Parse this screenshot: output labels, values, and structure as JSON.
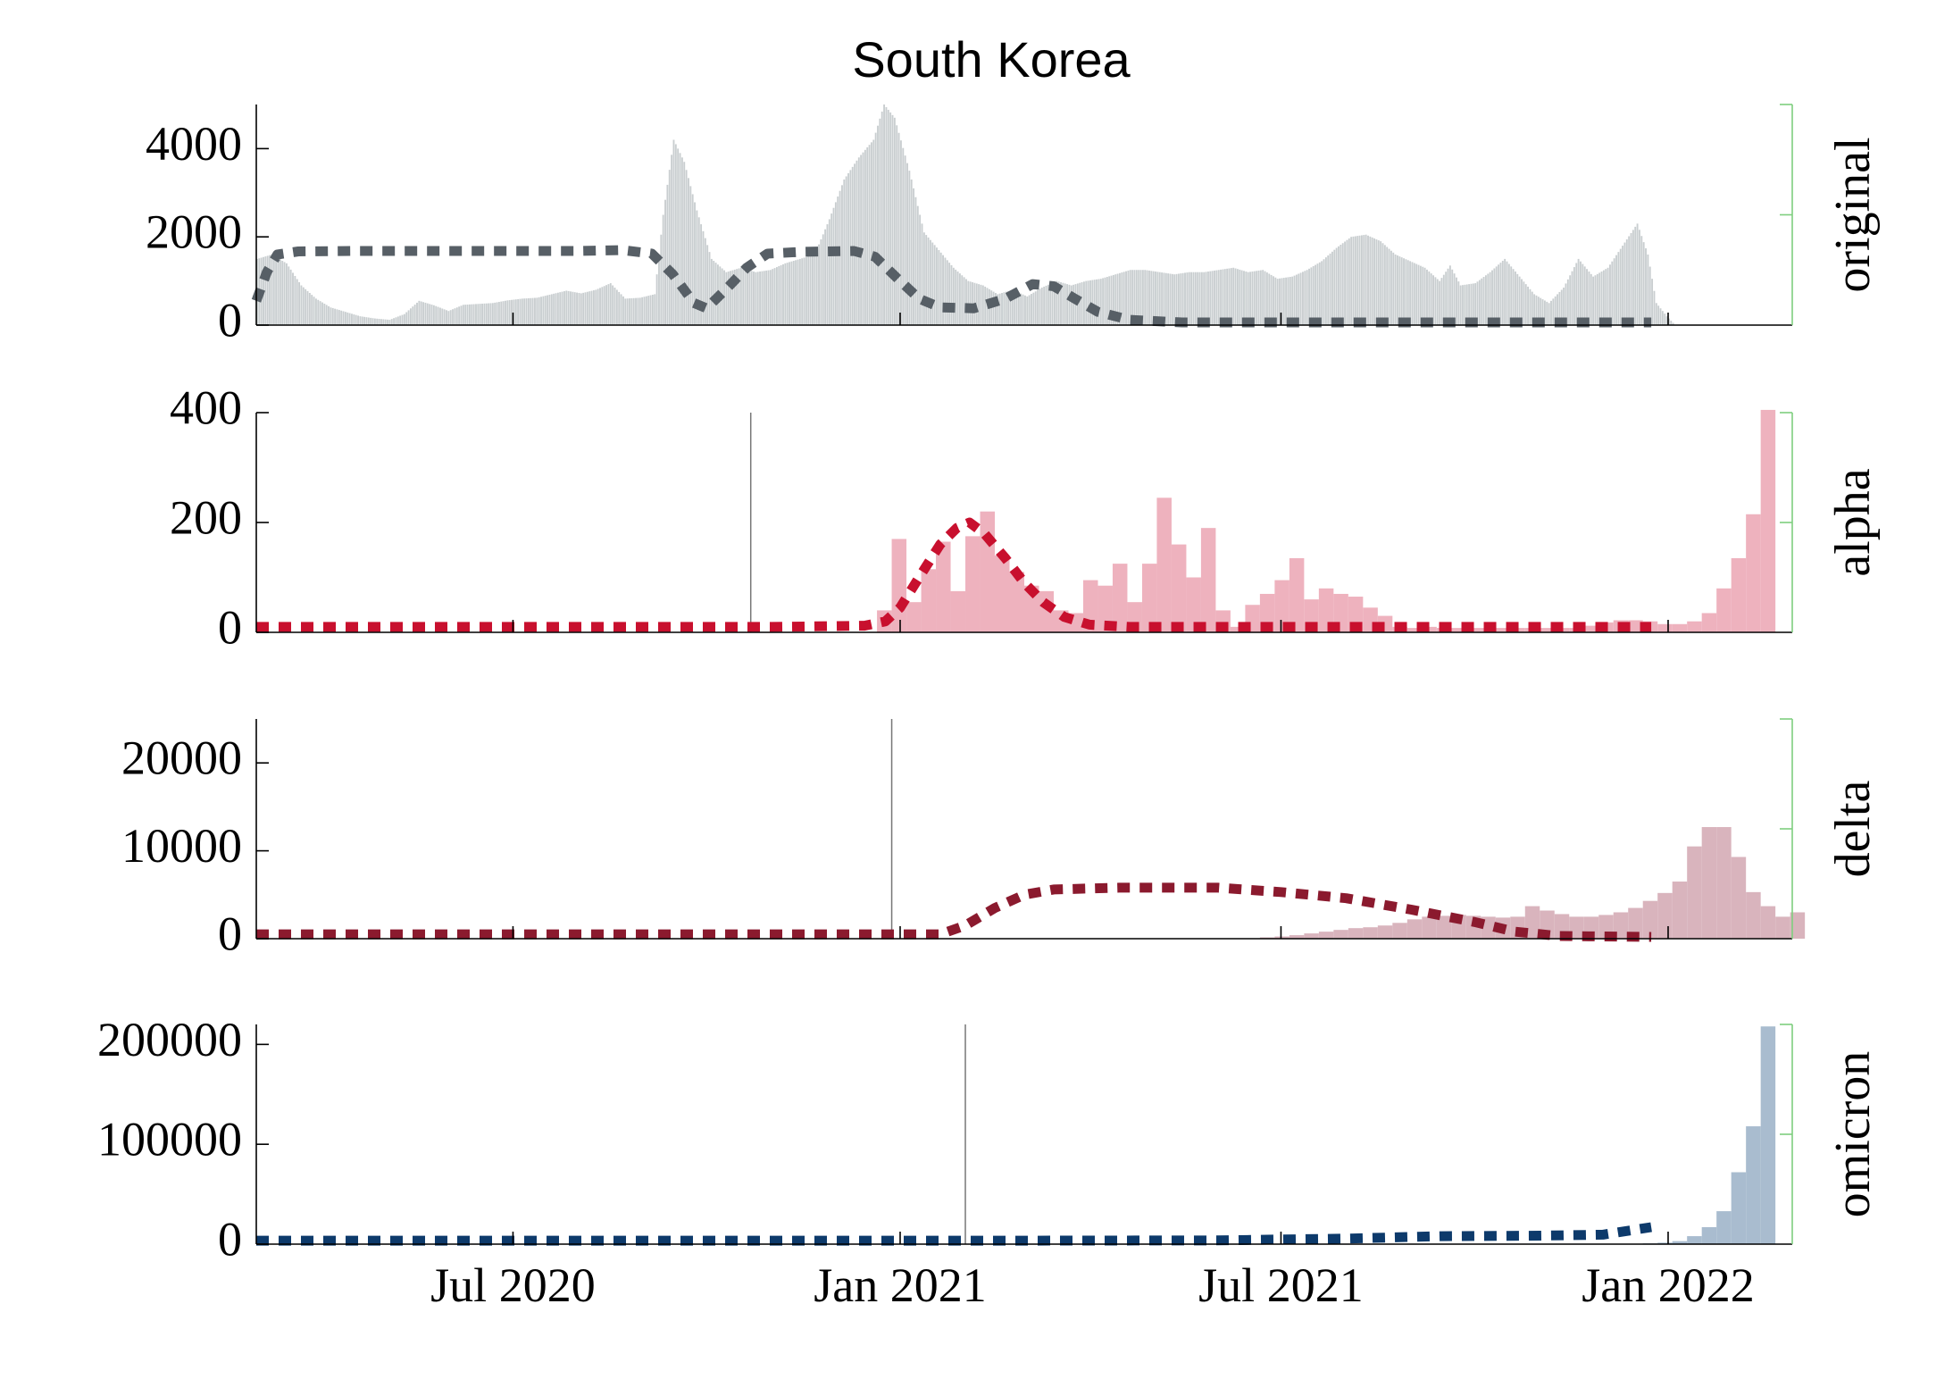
{
  "title": "South Korea",
  "x_ticks": [
    {
      "date": "2020-07-01",
      "label": "Jul 2020"
    },
    {
      "date": "2021-01-01",
      "label": "Jan 2021"
    },
    {
      "date": "2021-07-01",
      "label": "Jul 2021"
    },
    {
      "date": "2022-01-01",
      "label": "Jan 2022"
    }
  ],
  "xlim": [
    "2020-03-01",
    "2022-03-01"
  ],
  "colors": {
    "original_bar": "#c9ced0",
    "original_line": "#575f66",
    "alpha_bar": "#eeb2be",
    "alpha_line": "#c8102e",
    "delta_bar": "#d9b4bd",
    "delta_line": "#8b1a2e",
    "omicron_bar": "#a9bccf",
    "omicron_line": "#0d3a6b",
    "right_axis": "#7fcf7f"
  },
  "chart_data": [
    {
      "type": "bar",
      "label": "original",
      "ylim": [
        0,
        5000
      ],
      "yticks": [
        "0",
        "2000",
        "4000"
      ],
      "grid": false,
      "vline_date": null,
      "bar_days": 1,
      "bar_points": [
        [
          "2020-03-01",
          1500
        ],
        [
          "2020-03-08",
          1600
        ],
        [
          "2020-03-15",
          1400
        ],
        [
          "2020-03-22",
          900
        ],
        [
          "2020-03-29",
          600
        ],
        [
          "2020-04-05",
          400
        ],
        [
          "2020-04-12",
          300
        ],
        [
          "2020-04-19",
          200
        ],
        [
          "2020-04-26",
          150
        ],
        [
          "2020-05-03",
          120
        ],
        [
          "2020-05-10",
          250
        ],
        [
          "2020-05-17",
          550
        ],
        [
          "2020-05-24",
          450
        ],
        [
          "2020-05-31",
          320
        ],
        [
          "2020-06-07",
          460
        ],
        [
          "2020-06-14",
          480
        ],
        [
          "2020-06-21",
          500
        ],
        [
          "2020-06-28",
          560
        ],
        [
          "2020-07-05",
          600
        ],
        [
          "2020-07-12",
          620
        ],
        [
          "2020-07-19",
          700
        ],
        [
          "2020-07-26",
          780
        ],
        [
          "2020-08-02",
          720
        ],
        [
          "2020-08-09",
          800
        ],
        [
          "2020-08-16",
          950
        ],
        [
          "2020-08-23",
          600
        ],
        [
          "2020-08-30",
          620
        ],
        [
          "2020-09-06",
          700
        ],
        [
          "2020-09-10",
          2500
        ],
        [
          "2020-09-15",
          4200
        ],
        [
          "2020-09-20",
          3700
        ],
        [
          "2020-09-26",
          2600
        ],
        [
          "2020-10-03",
          1500
        ],
        [
          "2020-10-10",
          1200
        ],
        [
          "2020-10-17",
          1300
        ],
        [
          "2020-10-24",
          1200
        ],
        [
          "2020-10-31",
          1250
        ],
        [
          "2020-11-07",
          1400
        ],
        [
          "2020-11-14",
          1500
        ],
        [
          "2020-11-21",
          1600
        ],
        [
          "2020-11-28",
          2400
        ],
        [
          "2020-12-05",
          3300
        ],
        [
          "2020-12-12",
          3800
        ],
        [
          "2020-12-19",
          4200
        ],
        [
          "2020-12-24",
          5000
        ],
        [
          "2020-12-29",
          4700
        ],
        [
          "2021-01-05",
          3500
        ],
        [
          "2021-01-12",
          2100
        ],
        [
          "2021-01-19",
          1700
        ],
        [
          "2021-01-26",
          1300
        ],
        [
          "2021-02-02",
          1000
        ],
        [
          "2021-02-09",
          900
        ],
        [
          "2021-02-16",
          700
        ],
        [
          "2021-02-23",
          800
        ],
        [
          "2021-03-02",
          650
        ],
        [
          "2021-03-09",
          850
        ],
        [
          "2021-03-16",
          1000
        ],
        [
          "2021-03-23",
          900
        ],
        [
          "2021-03-30",
          1000
        ],
        [
          "2021-04-06",
          1050
        ],
        [
          "2021-04-13",
          1150
        ],
        [
          "2021-04-20",
          1250
        ],
        [
          "2021-04-27",
          1250
        ],
        [
          "2021-05-04",
          1200
        ],
        [
          "2021-05-11",
          1150
        ],
        [
          "2021-05-18",
          1200
        ],
        [
          "2021-05-25",
          1200
        ],
        [
          "2021-06-01",
          1250
        ],
        [
          "2021-06-08",
          1300
        ],
        [
          "2021-06-15",
          1200
        ],
        [
          "2021-06-22",
          1250
        ],
        [
          "2021-06-29",
          1050
        ],
        [
          "2021-07-06",
          1100
        ],
        [
          "2021-07-13",
          1250
        ],
        [
          "2021-07-20",
          1450
        ],
        [
          "2021-07-27",
          1750
        ],
        [
          "2021-08-03",
          2000
        ],
        [
          "2021-08-10",
          2050
        ],
        [
          "2021-08-17",
          1900
        ],
        [
          "2021-08-24",
          1600
        ],
        [
          "2021-08-31",
          1450
        ],
        [
          "2021-09-07",
          1300
        ],
        [
          "2021-09-14",
          1000
        ],
        [
          "2021-09-19",
          1350
        ],
        [
          "2021-09-24",
          900
        ],
        [
          "2021-10-01",
          950
        ],
        [
          "2021-10-08",
          1200
        ],
        [
          "2021-10-15",
          1500
        ],
        [
          "2021-10-22",
          1100
        ],
        [
          "2021-10-29",
          700
        ],
        [
          "2021-11-05",
          500
        ],
        [
          "2021-11-12",
          850
        ],
        [
          "2021-11-19",
          1500
        ],
        [
          "2021-11-26",
          1100
        ],
        [
          "2021-12-03",
          1300
        ],
        [
          "2021-12-10",
          1800
        ],
        [
          "2021-12-17",
          2300
        ],
        [
          "2021-12-22",
          1600
        ],
        [
          "2021-12-26",
          500
        ],
        [
          "2021-12-31",
          200
        ],
        [
          "2022-01-04",
          0
        ],
        [
          "2022-03-01",
          0
        ]
      ],
      "line_points": [
        [
          "2020-03-01",
          550
        ],
        [
          "2020-03-06",
          1200
        ],
        [
          "2020-03-11",
          1600
        ],
        [
          "2020-03-21",
          1670
        ],
        [
          "2020-04-15",
          1680
        ],
        [
          "2020-06-01",
          1680
        ],
        [
          "2020-07-01",
          1680
        ],
        [
          "2020-08-01",
          1680
        ],
        [
          "2020-08-22",
          1700
        ],
        [
          "2020-09-05",
          1620
        ],
        [
          "2020-09-15",
          1150
        ],
        [
          "2020-09-25",
          500
        ],
        [
          "2020-10-01",
          380
        ],
        [
          "2020-10-10",
          800
        ],
        [
          "2020-10-20",
          1300
        ],
        [
          "2020-10-30",
          1620
        ],
        [
          "2020-11-15",
          1660
        ],
        [
          "2020-12-10",
          1680
        ],
        [
          "2020-12-20",
          1550
        ],
        [
          "2021-01-01",
          1000
        ],
        [
          "2021-01-10",
          600
        ],
        [
          "2021-01-20",
          400
        ],
        [
          "2021-02-05",
          380
        ],
        [
          "2021-02-20",
          600
        ],
        [
          "2021-03-05",
          930
        ],
        [
          "2021-03-15",
          880
        ],
        [
          "2021-03-25",
          600
        ],
        [
          "2021-04-05",
          300
        ],
        [
          "2021-04-20",
          120
        ],
        [
          "2021-05-15",
          60
        ],
        [
          "2021-07-01",
          60
        ],
        [
          "2021-09-01",
          60
        ],
        [
          "2021-11-01",
          60
        ],
        [
          "2021-12-24",
          60
        ]
      ]
    },
    {
      "type": "bar",
      "label": "alpha",
      "ylim": [
        0,
        400
      ],
      "yticks": [
        "0",
        "200",
        "400"
      ],
      "grid": false,
      "vline_date": "2020-10-22",
      "bar_days": 7,
      "bar_points": [
        [
          "2020-12-21",
          40
        ],
        [
          "2020-12-28",
          170
        ],
        [
          "2021-01-04",
          55
        ],
        [
          "2021-01-11",
          115
        ],
        [
          "2021-01-18",
          165
        ],
        [
          "2021-01-25",
          75
        ],
        [
          "2021-02-01",
          175
        ],
        [
          "2021-02-08",
          220
        ],
        [
          "2021-02-15",
          140
        ],
        [
          "2021-02-22",
          110
        ],
        [
          "2021-03-01",
          85
        ],
        [
          "2021-03-08",
          75
        ],
        [
          "2021-03-15",
          40
        ],
        [
          "2021-03-22",
          35
        ],
        [
          "2021-03-29",
          95
        ],
        [
          "2021-04-05",
          85
        ],
        [
          "2021-04-12",
          125
        ],
        [
          "2021-04-19",
          55
        ],
        [
          "2021-04-26",
          125
        ],
        [
          "2021-05-03",
          245
        ],
        [
          "2021-05-10",
          160
        ],
        [
          "2021-05-17",
          100
        ],
        [
          "2021-05-24",
          190
        ],
        [
          "2021-05-31",
          40
        ],
        [
          "2021-06-07",
          10
        ],
        [
          "2021-06-14",
          50
        ],
        [
          "2021-06-21",
          70
        ],
        [
          "2021-06-28",
          95
        ],
        [
          "2021-07-05",
          135
        ],
        [
          "2021-07-12",
          60
        ],
        [
          "2021-07-19",
          80
        ],
        [
          "2021-07-26",
          70
        ],
        [
          "2021-08-02",
          65
        ],
        [
          "2021-08-09",
          45
        ],
        [
          "2021-08-16",
          30
        ],
        [
          "2021-08-23",
          10
        ],
        [
          "2021-08-30",
          8
        ],
        [
          "2021-09-06",
          10
        ],
        [
          "2021-09-13",
          8
        ],
        [
          "2021-09-20",
          8
        ],
        [
          "2021-09-27",
          8
        ],
        [
          "2021-10-04",
          8
        ],
        [
          "2021-10-11",
          8
        ],
        [
          "2021-10-18",
          8
        ],
        [
          "2021-10-25",
          8
        ],
        [
          "2021-11-01",
          8
        ],
        [
          "2021-11-08",
          8
        ],
        [
          "2021-11-15",
          8
        ],
        [
          "2021-11-22",
          12
        ],
        [
          "2021-11-29",
          18
        ],
        [
          "2021-12-06",
          22
        ],
        [
          "2021-12-13",
          22
        ],
        [
          "2021-12-20",
          20
        ],
        [
          "2021-12-27",
          15
        ],
        [
          "2022-01-03",
          15
        ],
        [
          "2022-01-10",
          20
        ],
        [
          "2022-01-17",
          35
        ],
        [
          "2022-01-24",
          80
        ],
        [
          "2022-01-31",
          135
        ],
        [
          "2022-02-07",
          215
        ],
        [
          "2022-02-14",
          405
        ]
      ],
      "line_points": [
        [
          "2020-03-01",
          10
        ],
        [
          "2020-07-01",
          10
        ],
        [
          "2020-11-01",
          10
        ],
        [
          "2020-12-15",
          12
        ],
        [
          "2020-12-25",
          20
        ],
        [
          "2021-01-01",
          45
        ],
        [
          "2021-01-10",
          100
        ],
        [
          "2021-01-20",
          160
        ],
        [
          "2021-01-28",
          190
        ],
        [
          "2021-02-03",
          200
        ],
        [
          "2021-02-10",
          180
        ],
        [
          "2021-02-20",
          135
        ],
        [
          "2021-03-01",
          90
        ],
        [
          "2021-03-10",
          55
        ],
        [
          "2021-03-20",
          28
        ],
        [
          "2021-04-01",
          14
        ],
        [
          "2021-04-20",
          10
        ],
        [
          "2021-07-01",
          10
        ],
        [
          "2021-12-24",
          10
        ]
      ]
    },
    {
      "type": "bar",
      "label": "delta",
      "ylim": [
        0,
        25000
      ],
      "yticks": [
        "0",
        "10000",
        "20000"
      ],
      "grid": false,
      "vline_date": "2020-12-28",
      "bar_days": 7,
      "bar_points": [
        [
          "2021-06-21",
          150
        ],
        [
          "2021-06-28",
          250
        ],
        [
          "2021-07-05",
          400
        ],
        [
          "2021-07-12",
          600
        ],
        [
          "2021-07-19",
          800
        ],
        [
          "2021-07-26",
          1000
        ],
        [
          "2021-08-02",
          1200
        ],
        [
          "2021-08-09",
          1300
        ],
        [
          "2021-08-16",
          1500
        ],
        [
          "2021-08-23",
          1800
        ],
        [
          "2021-08-30",
          2200
        ],
        [
          "2021-09-06",
          2500
        ],
        [
          "2021-09-13",
          2600
        ],
        [
          "2021-09-20",
          2700
        ],
        [
          "2021-09-27",
          2600
        ],
        [
          "2021-10-04",
          2500
        ],
        [
          "2021-10-11",
          2400
        ],
        [
          "2021-10-18",
          2500
        ],
        [
          "2021-10-25",
          3700
        ],
        [
          "2021-11-01",
          3200
        ],
        [
          "2021-11-08",
          2800
        ],
        [
          "2021-11-15",
          2500
        ],
        [
          "2021-11-22",
          2500
        ],
        [
          "2021-11-29",
          2700
        ],
        [
          "2021-12-06",
          3000
        ],
        [
          "2021-12-13",
          3500
        ],
        [
          "2021-12-20",
          4300
        ],
        [
          "2021-12-27",
          5200
        ],
        [
          "2022-01-03",
          6500
        ],
        [
          "2022-01-10",
          10500
        ],
        [
          "2022-01-17",
          12700
        ],
        [
          "2022-01-24",
          12700
        ],
        [
          "2022-01-31",
          9300
        ],
        [
          "2022-02-07",
          5300
        ],
        [
          "2022-02-14",
          3700
        ],
        [
          "2022-02-21",
          2500
        ],
        [
          "2022-02-28",
          3000
        ]
      ],
      "line_points": [
        [
          "2020-03-01",
          500
        ],
        [
          "2020-09-01",
          500
        ],
        [
          "2021-01-20",
          500
        ],
        [
          "2021-02-01",
          1500
        ],
        [
          "2021-02-15",
          3500
        ],
        [
          "2021-03-01",
          5000
        ],
        [
          "2021-03-15",
          5600
        ],
        [
          "2021-04-15",
          5800
        ],
        [
          "2021-06-01",
          5800
        ],
        [
          "2021-07-01",
          5300
        ],
        [
          "2021-08-01",
          4600
        ],
        [
          "2021-09-01",
          3300
        ],
        [
          "2021-10-01",
          1900
        ],
        [
          "2021-10-20",
          800
        ],
        [
          "2021-11-10",
          300
        ],
        [
          "2021-12-24",
          200
        ]
      ]
    },
    {
      "type": "bar",
      "label": "omicron",
      "ylim": [
        0,
        220000
      ],
      "yticks": [
        "0",
        "100000",
        "200000"
      ],
      "grid": false,
      "vline_date": "2021-02-01",
      "bar_days": 7,
      "bar_points": [
        [
          "2021-12-13",
          300
        ],
        [
          "2021-12-20",
          800
        ],
        [
          "2021-12-27",
          1500
        ],
        [
          "2022-01-03",
          3000
        ],
        [
          "2022-01-10",
          8000
        ],
        [
          "2022-01-17",
          17000
        ],
        [
          "2022-01-24",
          33000
        ],
        [
          "2022-01-31",
          72000
        ],
        [
          "2022-02-07",
          118000
        ],
        [
          "2022-02-14",
          218000
        ]
      ],
      "line_points": [
        [
          "2020-03-01",
          3500
        ],
        [
          "2021-03-01",
          3500
        ],
        [
          "2021-06-01",
          3800
        ],
        [
          "2021-08-01",
          5500
        ],
        [
          "2021-09-15",
          8000
        ],
        [
          "2021-11-01",
          8500
        ],
        [
          "2021-12-01",
          9500
        ],
        [
          "2021-12-24",
          17000
        ]
      ]
    }
  ]
}
